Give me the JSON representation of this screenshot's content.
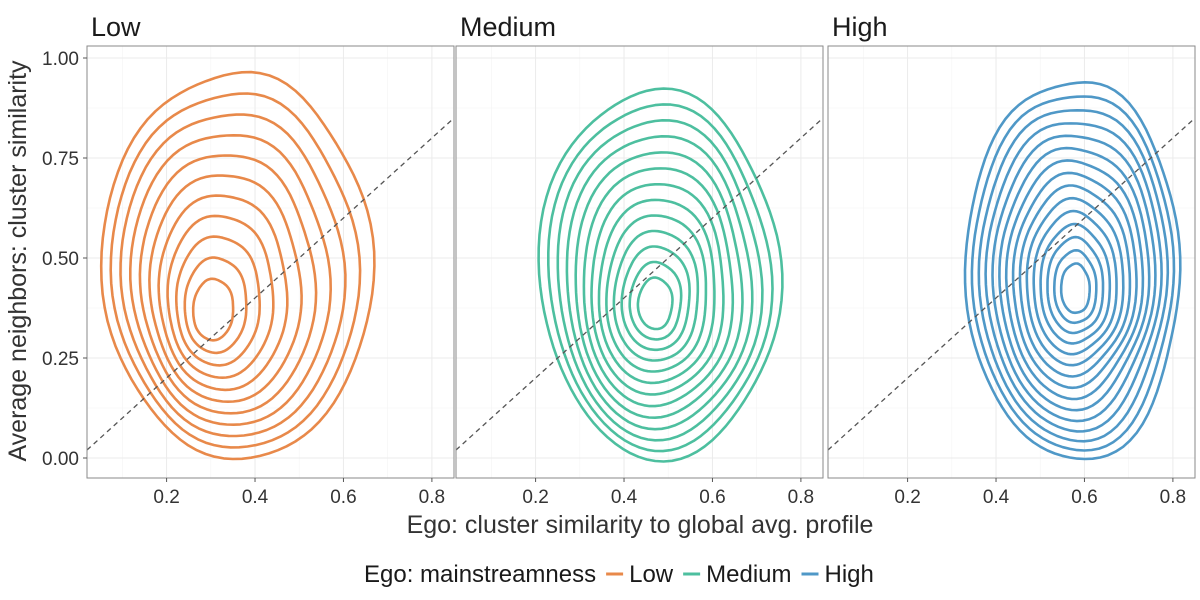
{
  "chart_data": {
    "type": "contour",
    "facets": [
      "Low",
      "Medium",
      "High"
    ],
    "xlabel": "Ego: cluster similarity to global avg. profile",
    "ylabel": "Average neighbors: cluster similarity",
    "xlim": [
      0.02,
      0.85
    ],
    "ylim": [
      -0.05,
      1.03
    ],
    "x_ticks": [
      0.2,
      0.4,
      0.6,
      0.8
    ],
    "x_tick_labels": [
      "0.2",
      "0.4",
      "0.6",
      "0.8"
    ],
    "y_ticks": [
      0.0,
      0.25,
      0.5,
      0.75,
      1.0
    ],
    "y_tick_labels": [
      "0.00",
      "0.25",
      "0.50",
      "0.75",
      "1.00"
    ],
    "reference_line": {
      "slope": 1,
      "intercept": 0,
      "style": "dashed"
    },
    "grid": true,
    "legend": {
      "title": "Ego: mainstreamness",
      "position": "bottom",
      "entries": [
        {
          "label": "Low",
          "color": "#E8894A"
        },
        {
          "label": "Medium",
          "color": "#4DBF9F"
        },
        {
          "label": "High",
          "color": "#4F98C7"
        }
      ]
    },
    "series": [
      {
        "name": "Low",
        "color": "#E8894A",
        "center": [
          0.3,
          0.38
        ],
        "contour_levels": 11,
        "outer_x_range": [
          0.06,
          0.66
        ],
        "outer_y_range": [
          -0.01,
          0.97
        ],
        "peak": [
          0.3,
          0.36
        ]
      },
      {
        "name": "Medium",
        "color": "#4DBF9F",
        "center": [
          0.48,
          0.42
        ],
        "contour_levels": 13,
        "outer_x_range": [
          0.21,
          0.75
        ],
        "outer_y_range": [
          0.0,
          0.92
        ],
        "peak": [
          0.47,
          0.38
        ]
      },
      {
        "name": "High",
        "color": "#4F98C7",
        "center": [
          0.57,
          0.44
        ],
        "contour_levels": 15,
        "outer_x_range": [
          0.33,
          0.82
        ],
        "outer_y_range": [
          0.0,
          0.94
        ],
        "peak": [
          0.58,
          0.42
        ]
      }
    ]
  }
}
